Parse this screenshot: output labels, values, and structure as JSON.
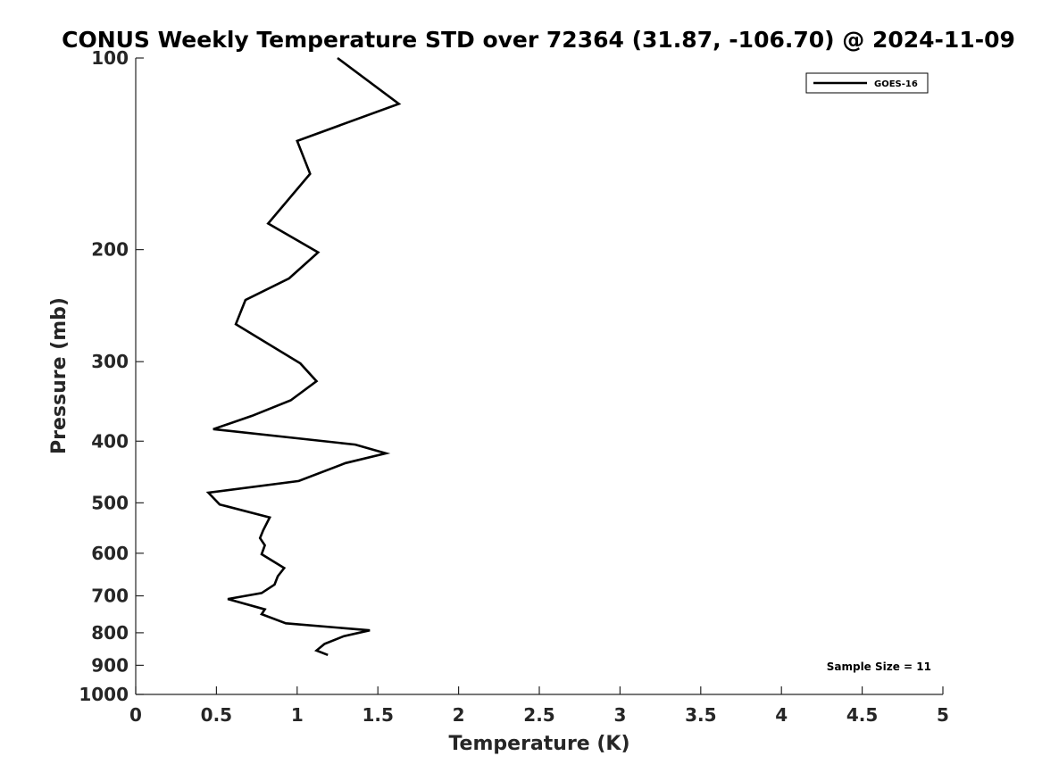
{
  "chart_data": {
    "type": "line",
    "title": "CONUS Weekly Temperature STD over 72364 (31.87, -106.70) @ 2024-11-09",
    "xlabel": "Temperature (K)",
    "ylabel": "Pressure (mb)",
    "xlim": [
      0,
      5
    ],
    "ylim": [
      1000,
      100
    ],
    "yscale": "log",
    "y_reversed": true,
    "grid": false,
    "legend_position": "top-right",
    "xticks": [
      0,
      0.5,
      1,
      1.5,
      2,
      2.5,
      3,
      3.5,
      4,
      4.5,
      5
    ],
    "xtick_labels": [
      "0",
      "0.5",
      "1",
      "1.5",
      "2",
      "2.5",
      "3",
      "3.5",
      "4",
      "4.5",
      "5"
    ],
    "yticks": [
      100,
      200,
      300,
      400,
      500,
      600,
      700,
      800,
      900,
      1000
    ],
    "ytick_labels": [
      "100",
      "200",
      "300",
      "400",
      "500",
      "600",
      "700",
      "800",
      "900",
      "1000"
    ],
    "series": [
      {
        "name": "GOES-16",
        "color": "#000000",
        "points": [
          {
            "x": 1.25,
            "y": 100
          },
          {
            "x": 1.63,
            "y": 118
          },
          {
            "x": 1.0,
            "y": 135
          },
          {
            "x": 1.08,
            "y": 152
          },
          {
            "x": 0.82,
            "y": 182
          },
          {
            "x": 1.13,
            "y": 202
          },
          {
            "x": 0.95,
            "y": 222
          },
          {
            "x": 0.68,
            "y": 240
          },
          {
            "x": 0.62,
            "y": 262
          },
          {
            "x": 1.02,
            "y": 302
          },
          {
            "x": 1.12,
            "y": 322
          },
          {
            "x": 0.96,
            "y": 345
          },
          {
            "x": 0.72,
            "y": 365
          },
          {
            "x": 0.48,
            "y": 383
          },
          {
            "x": 1.36,
            "y": 405
          },
          {
            "x": 1.55,
            "y": 418
          },
          {
            "x": 1.3,
            "y": 433
          },
          {
            "x": 1.01,
            "y": 462
          },
          {
            "x": 0.45,
            "y": 482
          },
          {
            "x": 0.52,
            "y": 503
          },
          {
            "x": 0.83,
            "y": 527
          },
          {
            "x": 0.79,
            "y": 552
          },
          {
            "x": 0.77,
            "y": 568
          },
          {
            "x": 0.8,
            "y": 583
          },
          {
            "x": 0.78,
            "y": 602
          },
          {
            "x": 0.92,
            "y": 633
          },
          {
            "x": 0.88,
            "y": 652
          },
          {
            "x": 0.86,
            "y": 672
          },
          {
            "x": 0.78,
            "y": 693
          },
          {
            "x": 0.57,
            "y": 708
          },
          {
            "x": 0.8,
            "y": 735
          },
          {
            "x": 0.78,
            "y": 748
          },
          {
            "x": 0.93,
            "y": 773
          },
          {
            "x": 1.45,
            "y": 793
          },
          {
            "x": 1.29,
            "y": 810
          },
          {
            "x": 1.17,
            "y": 833
          },
          {
            "x": 1.12,
            "y": 853
          },
          {
            "x": 1.19,
            "y": 867
          }
        ]
      }
    ],
    "annotations": [
      {
        "text": "Sample Size = 11",
        "position": "bottom-right"
      }
    ]
  }
}
